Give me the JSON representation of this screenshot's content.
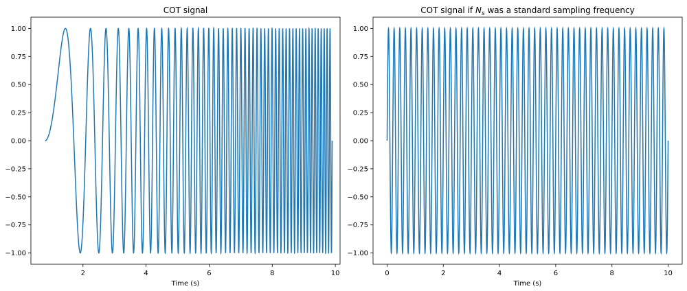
{
  "chart_data": [
    {
      "type": "line",
      "title": "COT signal",
      "xlabel": "Time (s)",
      "ylabel": "",
      "xlim": [
        0.35,
        10.15
      ],
      "ylim": [
        -1.1,
        1.1
      ],
      "xticks": [
        2,
        4,
        6,
        8,
        10
      ],
      "xtick_labels": [
        "2",
        "4",
        "6",
        "8",
        "10"
      ],
      "yticks": [
        1.0,
        0.75,
        0.5,
        0.25,
        0.0,
        -0.25,
        -0.5,
        -0.75,
        -1.0
      ],
      "ytick_labels": [
        "1.00",
        "0.75",
        "0.50",
        "0.25",
        "0.00",
        "−0.25",
        "−0.50",
        "−0.75",
        "−1.00"
      ],
      "grid": false,
      "color": "#1f77b4",
      "signal": {
        "form": "y = sin(2*pi*(cycles/(10 - t_start)) * (t - t_start)^2 / (2 * (t_end - t_start)) * 2)",
        "t_start": 0.8,
        "t_end": 9.9,
        "cycles": 50
      }
    },
    {
      "type": "line",
      "title": "COT signal if N_s was a standard sampling frequency",
      "title_parts": {
        "before": "COT signal if ",
        "symbol": "N",
        "subscript": "s",
        "after": " was a standard sampling frequency"
      },
      "xlabel": "Time (s)",
      "ylabel": "",
      "xlim": [
        -0.5,
        10.5
      ],
      "ylim": [
        -1.1,
        1.1
      ],
      "xticks": [
        0,
        2,
        4,
        6,
        8,
        10
      ],
      "xtick_labels": [
        "0",
        "2",
        "4",
        "6",
        "8",
        "10"
      ],
      "yticks": [
        1.0,
        0.75,
        0.5,
        0.25,
        0.0,
        -0.25,
        -0.5,
        -0.75,
        -1.0
      ],
      "ytick_labels": [
        "1.00",
        "0.75",
        "0.50",
        "0.25",
        "0.00",
        "−0.25",
        "−0.50",
        "−0.75",
        "−1.00"
      ],
      "grid": false,
      "color": "#1f77b4",
      "signal": {
        "form": "y = sin(2*pi*f*t)",
        "t_start": 0,
        "t_end": 10,
        "frequency_hz": 5
      }
    }
  ]
}
